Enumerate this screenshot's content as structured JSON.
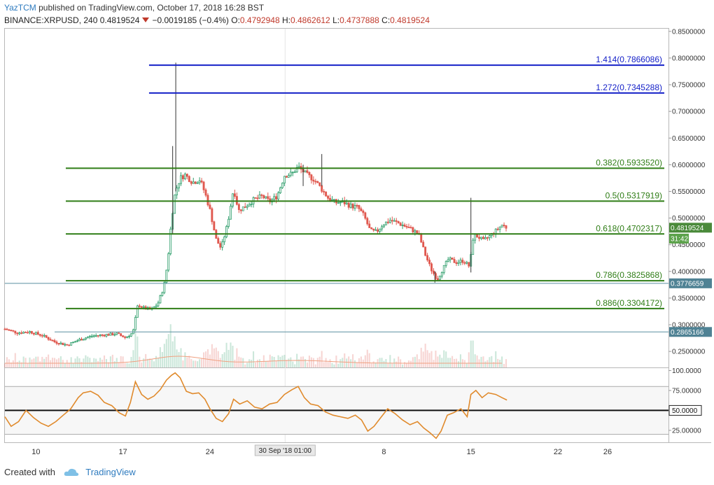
{
  "header": {
    "author": "YazTCM",
    "published": "published on TradingView.com, October 17, 2018 16:28 BST",
    "symbol": "BINANCE:XRPUSD, 240",
    "last": "0.4819524",
    "change": "−0.0019185 (−0.4%)",
    "o_label": "O:",
    "o": "0.4792948",
    "h_label": "H:",
    "h": "0.4862612",
    "l_label": "L:",
    "l": "0.4737888",
    "c_label": "C:",
    "c": "0.4819524"
  },
  "footer": {
    "created_with": "Created with",
    "brand": "TradingView"
  },
  "colors": {
    "up": "#2e9e6b",
    "down": "#e0584f",
    "rsi": "#e08a2c",
    "fib_green": "#2f7d16",
    "fib_blue": "#1420c8"
  },
  "chart_data": {
    "type": "candlestick",
    "symbol": "BINANCE:XRPUSD",
    "interval": "240",
    "ylim": [
      0.22,
      0.855
    ],
    "price_ticks": [
      "0.8500000",
      "0.8000000",
      "0.7500000",
      "0.7000000",
      "0.6500000",
      "0.6000000",
      "0.5500000",
      "0.5000000",
      "0.4500000",
      "0.4000000",
      "0.3500000",
      "0.3000000",
      "0.2500000"
    ],
    "x_ticks": [
      "10",
      "17",
      "24",
      "8",
      "15",
      "22",
      "26"
    ],
    "x_tick_values": [
      10,
      17,
      24,
      38,
      45,
      52,
      56
    ],
    "cursor_label": "30 Sep '18  01:00",
    "fib_levels": [
      {
        "label": "1.414(0.7866086)",
        "value": 0.7866086,
        "color": "blue"
      },
      {
        "label": "1.272(0.7345288)",
        "value": 0.7345288,
        "color": "blue"
      },
      {
        "label": "0.382(0.5933520)",
        "value": 0.593352,
        "color": "green"
      },
      {
        "label": "0.5(0.5317919)",
        "value": 0.5317919,
        "color": "green"
      },
      {
        "label": "0.618(0.4702317)",
        "value": 0.4702317,
        "color": "green"
      },
      {
        "label": "0.786(0.3825868)",
        "value": 0.3825868,
        "color": "green"
      },
      {
        "label": "0.886(0.3304172)",
        "value": 0.3304172,
        "color": "green"
      }
    ],
    "price_markers": [
      {
        "label": "0.4819524",
        "value": 0.4819524,
        "style": "green"
      },
      {
        "label": "31:42",
        "value": 0.4615,
        "style": "green-small"
      },
      {
        "label": "0.3776659",
        "value": 0.3776659,
        "style": "teal"
      },
      {
        "label": "0.2865166",
        "value": 0.2865166,
        "style": "teal"
      }
    ],
    "close_path": [
      [
        7.5,
        0.292
      ],
      [
        8.5,
        0.285
      ],
      [
        9.5,
        0.287
      ],
      [
        10.5,
        0.28
      ],
      [
        11.5,
        0.268
      ],
      [
        12.5,
        0.262
      ],
      [
        13.5,
        0.272
      ],
      [
        14.5,
        0.279
      ],
      [
        15.5,
        0.281
      ],
      [
        16.5,
        0.283
      ],
      [
        17.2,
        0.276
      ],
      [
        17.8,
        0.285
      ],
      [
        18.2,
        0.338
      ],
      [
        18.7,
        0.331
      ],
      [
        19.3,
        0.328
      ],
      [
        19.8,
        0.339
      ],
      [
        20.3,
        0.372
      ],
      [
        20.6,
        0.418
      ],
      [
        20.9,
        0.496
      ],
      [
        21.2,
        0.548
      ],
      [
        21.6,
        0.575
      ],
      [
        22.0,
        0.581
      ],
      [
        22.6,
        0.567
      ],
      [
        23.2,
        0.572
      ],
      [
        23.6,
        0.547
      ],
      [
        24.0,
        0.515
      ],
      [
        24.5,
        0.46
      ],
      [
        24.9,
        0.443
      ],
      [
        25.4,
        0.487
      ],
      [
        25.9,
        0.556
      ],
      [
        26.3,
        0.514
      ],
      [
        26.9,
        0.523
      ],
      [
        27.5,
        0.534
      ],
      [
        28.2,
        0.541
      ],
      [
        28.8,
        0.531
      ],
      [
        29.4,
        0.541
      ],
      [
        30.0,
        0.58
      ],
      [
        30.6,
        0.583
      ],
      [
        31.1,
        0.596
      ],
      [
        31.8,
        0.581
      ],
      [
        32.4,
        0.572
      ],
      [
        32.9,
        0.557
      ],
      [
        33.5,
        0.538
      ],
      [
        34.1,
        0.529
      ],
      [
        34.7,
        0.53
      ],
      [
        35.3,
        0.523
      ],
      [
        35.9,
        0.52
      ],
      [
        36.4,
        0.504
      ],
      [
        36.9,
        0.476
      ],
      [
        37.4,
        0.474
      ],
      [
        37.9,
        0.488
      ],
      [
        38.5,
        0.496
      ],
      [
        39.0,
        0.492
      ],
      [
        39.6,
        0.486
      ],
      [
        40.2,
        0.479
      ],
      [
        40.8,
        0.47
      ],
      [
        41.3,
        0.433
      ],
      [
        41.8,
        0.404
      ],
      [
        42.3,
        0.385
      ],
      [
        42.7,
        0.403
      ],
      [
        43.2,
        0.423
      ],
      [
        43.8,
        0.417
      ],
      [
        44.4,
        0.42
      ],
      [
        44.9,
        0.409
      ],
      [
        45.2,
        0.468
      ],
      [
        45.6,
        0.465
      ],
      [
        46.0,
        0.457
      ],
      [
        46.5,
        0.466
      ],
      [
        47.0,
        0.476
      ],
      [
        47.5,
        0.487
      ],
      [
        47.9,
        0.482
      ]
    ],
    "spikes": [
      {
        "x": 21.25,
        "low": 0.55,
        "high": 0.7913
      },
      {
        "x": 21.0,
        "low": 0.47,
        "high": 0.635
      },
      {
        "x": 45.0,
        "low": 0.398,
        "high": 0.538
      },
      {
        "x": 33.0,
        "low": 0.56,
        "high": 0.62
      },
      {
        "x": 31.5,
        "low": 0.56,
        "high": 0.6
      },
      {
        "x": 42.1,
        "low": 0.379,
        "high": 0.4
      }
    ],
    "rsi": {
      "ylim": [
        10,
        103
      ],
      "ticks": [
        "100.0000",
        "75.00000",
        "25.00000"
      ],
      "marker": "50.0000",
      "bands": [
        80,
        50,
        20
      ],
      "path": [
        [
          7.5,
          42
        ],
        [
          8.0,
          30
        ],
        [
          8.6,
          36
        ],
        [
          9.2,
          50
        ],
        [
          9.8,
          41
        ],
        [
          10.4,
          34
        ],
        [
          11.0,
          30
        ],
        [
          11.6,
          36
        ],
        [
          12.2,
          44
        ],
        [
          12.8,
          52
        ],
        [
          13.4,
          66
        ],
        [
          13.8,
          72
        ],
        [
          14.4,
          74
        ],
        [
          15.0,
          69
        ],
        [
          15.5,
          60
        ],
        [
          16.1,
          56
        ],
        [
          16.7,
          47
        ],
        [
          17.2,
          43
        ],
        [
          17.6,
          60
        ],
        [
          18.0,
          86
        ],
        [
          18.5,
          70
        ],
        [
          19.0,
          64
        ],
        [
          19.5,
          68
        ],
        [
          20.0,
          76
        ],
        [
          20.5,
          88
        ],
        [
          20.9,
          94
        ],
        [
          21.2,
          97
        ],
        [
          21.6,
          91
        ],
        [
          22.1,
          74
        ],
        [
          22.6,
          71
        ],
        [
          23.1,
          72
        ],
        [
          23.6,
          64
        ],
        [
          24.0,
          52
        ],
        [
          24.5,
          40
        ],
        [
          25.0,
          36
        ],
        [
          25.5,
          46
        ],
        [
          25.9,
          64
        ],
        [
          26.4,
          58
        ],
        [
          27.0,
          62
        ],
        [
          27.6,
          54
        ],
        [
          28.2,
          52
        ],
        [
          28.8,
          58
        ],
        [
          29.4,
          60
        ],
        [
          30.0,
          70
        ],
        [
          30.6,
          76
        ],
        [
          31.1,
          80
        ],
        [
          31.6,
          66
        ],
        [
          32.1,
          58
        ],
        [
          32.7,
          56
        ],
        [
          33.3,
          48
        ],
        [
          33.9,
          44
        ],
        [
          34.5,
          42
        ],
        [
          35.1,
          40
        ],
        [
          35.7,
          44
        ],
        [
          36.2,
          38
        ],
        [
          36.7,
          24
        ],
        [
          37.2,
          30
        ],
        [
          37.7,
          40
        ],
        [
          38.3,
          52
        ],
        [
          38.9,
          46
        ],
        [
          39.5,
          38
        ],
        [
          40.1,
          32
        ],
        [
          40.7,
          36
        ],
        [
          41.2,
          28
        ],
        [
          41.7,
          22
        ],
        [
          42.2,
          15
        ],
        [
          42.6,
          24
        ],
        [
          43.1,
          44
        ],
        [
          43.6,
          47
        ],
        [
          44.2,
          52
        ],
        [
          44.7,
          42
        ],
        [
          45.0,
          70
        ],
        [
          45.4,
          75
        ],
        [
          45.9,
          66
        ],
        [
          46.4,
          72
        ],
        [
          47.0,
          70
        ],
        [
          47.5,
          66
        ],
        [
          47.9,
          63
        ]
      ]
    }
  }
}
